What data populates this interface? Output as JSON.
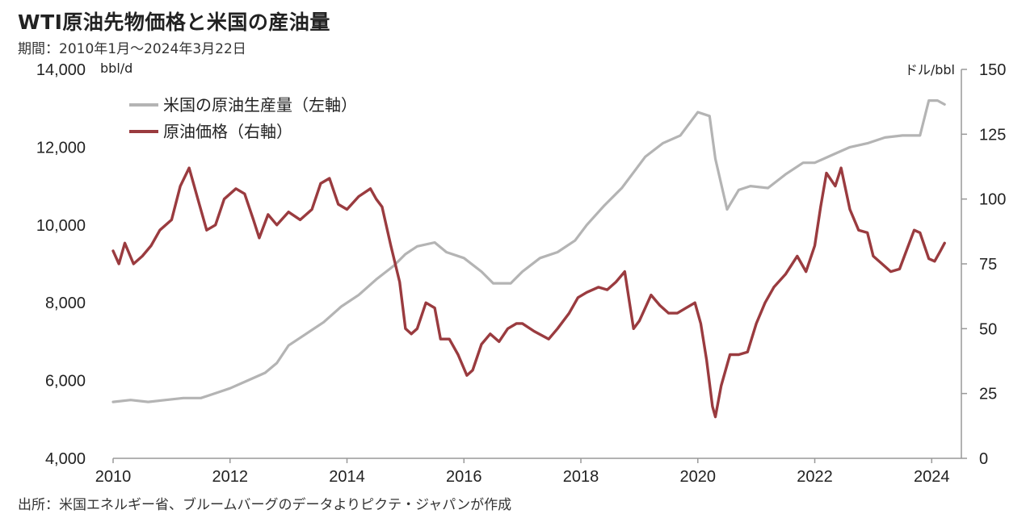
{
  "header": {
    "title": "WTI原油先物価格と米国の産油量",
    "period": "期間：2010年1月〜2024年3月22日"
  },
  "footer": {
    "source": "出所：米国エネルギー省、ブルームバーグのデータよりピクテ・ジャパンが作成"
  },
  "colors": {
    "production": "#b4b4b4",
    "price": "#9a3b3f",
    "axis": "#999999"
  },
  "chart_data": {
    "type": "line",
    "title": "WTI原油先物価格と米国の産油量",
    "left_axis": {
      "unit": "bbl/d",
      "range": [
        4000,
        14000
      ],
      "ticks": [
        "4,000",
        "6,000",
        "8,000",
        "10,000",
        "12,000",
        "14,000"
      ]
    },
    "right_axis": {
      "unit": "ドル/bbl",
      "range": [
        0,
        150
      ],
      "ticks": [
        "0",
        "25",
        "50",
        "75",
        "100",
        "125",
        "150"
      ]
    },
    "x_axis": {
      "range": [
        2010,
        2024.3
      ],
      "ticks": [
        "2010",
        "2012",
        "2014",
        "2016",
        "2018",
        "2020",
        "2022",
        "2024"
      ]
    },
    "legend": {
      "placement": "top-left"
    },
    "grid": false,
    "series": [
      {
        "name": "米国の原油生産量（左軸）",
        "axis": "left",
        "x": [
          2010.0,
          2010.3,
          2010.6,
          2010.9,
          2011.2,
          2011.5,
          2011.8,
          2012.0,
          2012.3,
          2012.6,
          2012.8,
          2013.0,
          2013.3,
          2013.6,
          2013.9,
          2014.2,
          2014.5,
          2014.8,
          2015.0,
          2015.2,
          2015.5,
          2015.7,
          2016.0,
          2016.3,
          2016.5,
          2016.8,
          2017.0,
          2017.3,
          2017.6,
          2017.9,
          2018.1,
          2018.4,
          2018.7,
          2018.9,
          2019.1,
          2019.4,
          2019.7,
          2019.9,
          2020.0,
          2020.2,
          2020.3,
          2020.5,
          2020.7,
          2020.9,
          2021.2,
          2021.5,
          2021.8,
          2022.0,
          2022.3,
          2022.6,
          2022.9,
          2023.2,
          2023.5,
          2023.8,
          2023.95,
          2024.1,
          2024.22
        ],
        "values": [
          5450,
          5500,
          5450,
          5500,
          5550,
          5550,
          5700,
          5800,
          6000,
          6200,
          6450,
          6900,
          7200,
          7500,
          7900,
          8200,
          8600,
          8950,
          9250,
          9450,
          9550,
          9300,
          9150,
          8800,
          8500,
          8500,
          8800,
          9150,
          9300,
          9600,
          10000,
          10500,
          10950,
          11350,
          11750,
          12100,
          12300,
          12700,
          12900,
          12800,
          11700,
          10400,
          10900,
          11000,
          10950,
          11300,
          11600,
          11600,
          11800,
          12000,
          12100,
          12250,
          12300,
          12300,
          13200,
          13200,
          13100
        ]
      },
      {
        "name": "原油価格（右軸）",
        "axis": "right",
        "x": [
          2010.0,
          2010.1,
          2010.2,
          2010.35,
          2010.5,
          2010.65,
          2010.8,
          2011.0,
          2011.15,
          2011.3,
          2011.45,
          2011.6,
          2011.75,
          2011.9,
          2012.1,
          2012.25,
          2012.4,
          2012.5,
          2012.65,
          2012.8,
          2013.0,
          2013.2,
          2013.4,
          2013.55,
          2013.7,
          2013.85,
          2014.0,
          2014.2,
          2014.4,
          2014.5,
          2014.6,
          2014.75,
          2014.9,
          2015.0,
          2015.1,
          2015.2,
          2015.35,
          2015.5,
          2015.6,
          2015.75,
          2015.9,
          2016.05,
          2016.15,
          2016.3,
          2016.45,
          2016.6,
          2016.75,
          2016.9,
          2017.0,
          2017.2,
          2017.45,
          2017.6,
          2017.8,
          2017.95,
          2018.1,
          2018.3,
          2018.45,
          2018.6,
          2018.75,
          2018.9,
          2019.0,
          2019.2,
          2019.35,
          2019.5,
          2019.65,
          2019.8,
          2019.95,
          2020.05,
          2020.15,
          2020.25,
          2020.3,
          2020.4,
          2020.55,
          2020.7,
          2020.85,
          2021.0,
          2021.15,
          2021.3,
          2021.5,
          2021.7,
          2021.85,
          2022.0,
          2022.1,
          2022.2,
          2022.35,
          2022.45,
          2022.6,
          2022.75,
          2022.9,
          2023.0,
          2023.15,
          2023.3,
          2023.45,
          2023.55,
          2023.7,
          2023.8,
          2023.95,
          2024.05,
          2024.15,
          2024.22
        ],
        "values": [
          80,
          75,
          83,
          75,
          78,
          82,
          88,
          92,
          105,
          112,
          100,
          88,
          90,
          100,
          104,
          102,
          92,
          85,
          94,
          90,
          95,
          92,
          96,
          106,
          108,
          98,
          96,
          101,
          104,
          100,
          97,
          82,
          68,
          50,
          48,
          50,
          60,
          58,
          46,
          46,
          40,
          32,
          34,
          44,
          48,
          45,
          50,
          52,
          52,
          49,
          46,
          50,
          56,
          62,
          64,
          66,
          65,
          68,
          72,
          50,
          53,
          63,
          59,
          56,
          56,
          58,
          60,
          52,
          38,
          20,
          16,
          28,
          40,
          40,
          41,
          52,
          60,
          66,
          71,
          78,
          72,
          82,
          97,
          110,
          105,
          112,
          96,
          88,
          87,
          78,
          75,
          72,
          73,
          79,
          88,
          87,
          77,
          76,
          80,
          83
        ]
      }
    ]
  }
}
